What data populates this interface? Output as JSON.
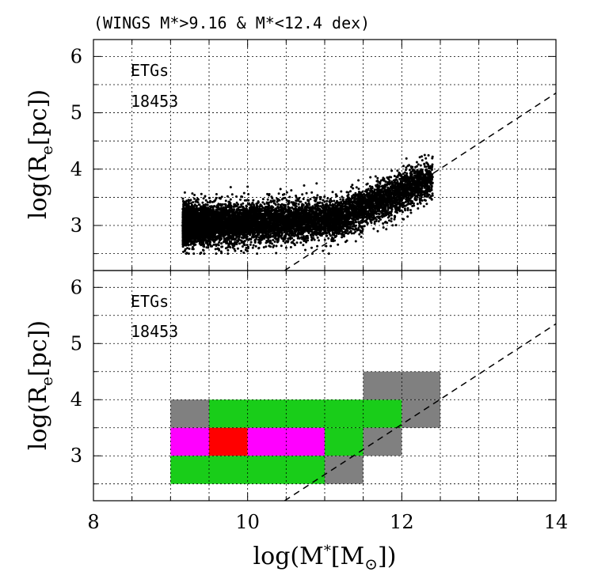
{
  "chart_data": {
    "title": "(WINGS M*>9.16 & M*<12.4 dex)",
    "xlabel": "log(M*[M⊙])",
    "xlabel_parts": {
      "pre": "log(M",
      "sup": "*",
      "mid": "[M",
      "sub": "⊙",
      "post": "])"
    },
    "ylabel_parts": {
      "pre": "log(R",
      "sub": "e",
      "post": "[pc])"
    },
    "xlim": [
      8,
      14
    ],
    "x_ticks": [
      "8",
      "10",
      "12",
      "14"
    ],
    "y_ticks": [
      "3",
      "4",
      "5",
      "6"
    ],
    "grid": true,
    "panels": [
      {
        "type": "scatter",
        "ylim": [
          2.2,
          6.3
        ],
        "label": "ETGs",
        "count": "18453",
        "dashed_line": {
          "x": [
            10.48,
            14.0
          ],
          "y": [
            2.2,
            5.35
          ]
        },
        "cloud": {
          "n_points": 9000,
          "x_range": [
            9.16,
            12.4
          ],
          "color": "#000000"
        }
      },
      {
        "type": "heatmap",
        "ylim": [
          2.2,
          6.3
        ],
        "label": "ETGs",
        "count": "18453",
        "dashed_line": {
          "x": [
            10.48,
            14.0
          ],
          "y": [
            2.2,
            5.35
          ]
        },
        "cells": [
          {
            "x0": 9.0,
            "x1": 9.5,
            "y0": 3.5,
            "y1": 4.0,
            "color": "#808080"
          },
          {
            "x0": 9.5,
            "x1": 12.0,
            "y0": 3.5,
            "y1": 4.0,
            "color": "#19cd19"
          },
          {
            "x0": 11.5,
            "x1": 12.5,
            "y0": 4.0,
            "y1": 4.5,
            "color": "#808080"
          },
          {
            "x0": 12.0,
            "x1": 12.5,
            "y0": 3.5,
            "y1": 4.0,
            "color": "#808080"
          },
          {
            "x0": 9.0,
            "x1": 9.5,
            "y0": 3.0,
            "y1": 3.5,
            "color": "#ff00ff"
          },
          {
            "x0": 9.5,
            "x1": 10.0,
            "y0": 3.0,
            "y1": 3.5,
            "color": "#ff0000"
          },
          {
            "x0": 10.0,
            "x1": 11.0,
            "y0": 3.0,
            "y1": 3.5,
            "color": "#ff00ff"
          },
          {
            "x0": 11.0,
            "x1": 11.5,
            "y0": 3.0,
            "y1": 3.5,
            "color": "#19cd19"
          },
          {
            "x0": 11.5,
            "x1": 12.0,
            "y0": 3.0,
            "y1": 3.5,
            "color": "#808080"
          },
          {
            "x0": 9.0,
            "x1": 11.0,
            "y0": 2.5,
            "y1": 3.0,
            "color": "#19cd19"
          },
          {
            "x0": 11.0,
            "x1": 11.5,
            "y0": 2.5,
            "y1": 3.0,
            "color": "#808080"
          }
        ]
      }
    ]
  }
}
